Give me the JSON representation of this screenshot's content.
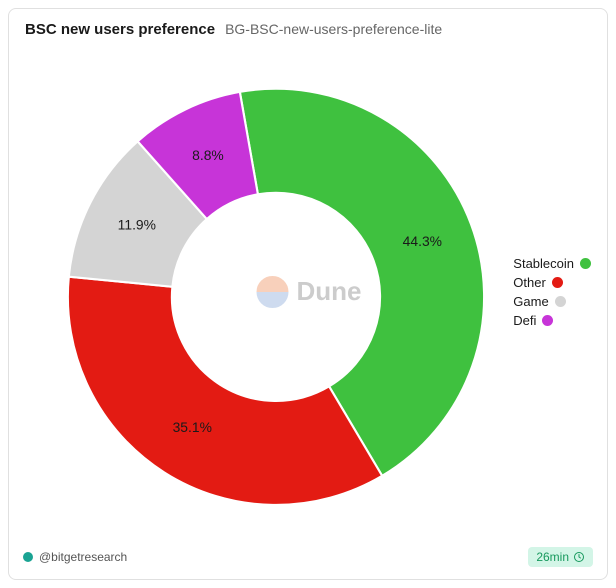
{
  "header": {
    "title": "BSC new users preference",
    "subtitle": "BG-BSC-new-users-preference-lite"
  },
  "chart": {
    "type": "donut",
    "inner_radius_ratio": 0.5,
    "start_angle_deg": -10,
    "background_color": "#ffffff",
    "label_fontsize": 13,
    "slices": [
      {
        "label": "Stablecoin",
        "value": 44.3,
        "color": "#3fc13f",
        "display": "44.3%"
      },
      {
        "label": "Other",
        "value": 35.1,
        "color": "#e31b13",
        "display": "35.1%"
      },
      {
        "label": "Game",
        "value": 11.9,
        "color": "#d4d4d4",
        "display": "11.9%"
      },
      {
        "label": "Defi",
        "value": 8.8,
        "color": "#c734d8",
        "display": "8.8%"
      }
    ]
  },
  "watermark": {
    "text": "Dune",
    "logo_top_color": "#f2a37a",
    "logo_bottom_color": "#9fb9e0"
  },
  "footer": {
    "author_handle": "@bitgetresearch",
    "author_dot_color": "#1aa393",
    "time_label": "26min",
    "time_badge_bg": "#d3f5e7",
    "time_badge_fg": "#17995d"
  }
}
